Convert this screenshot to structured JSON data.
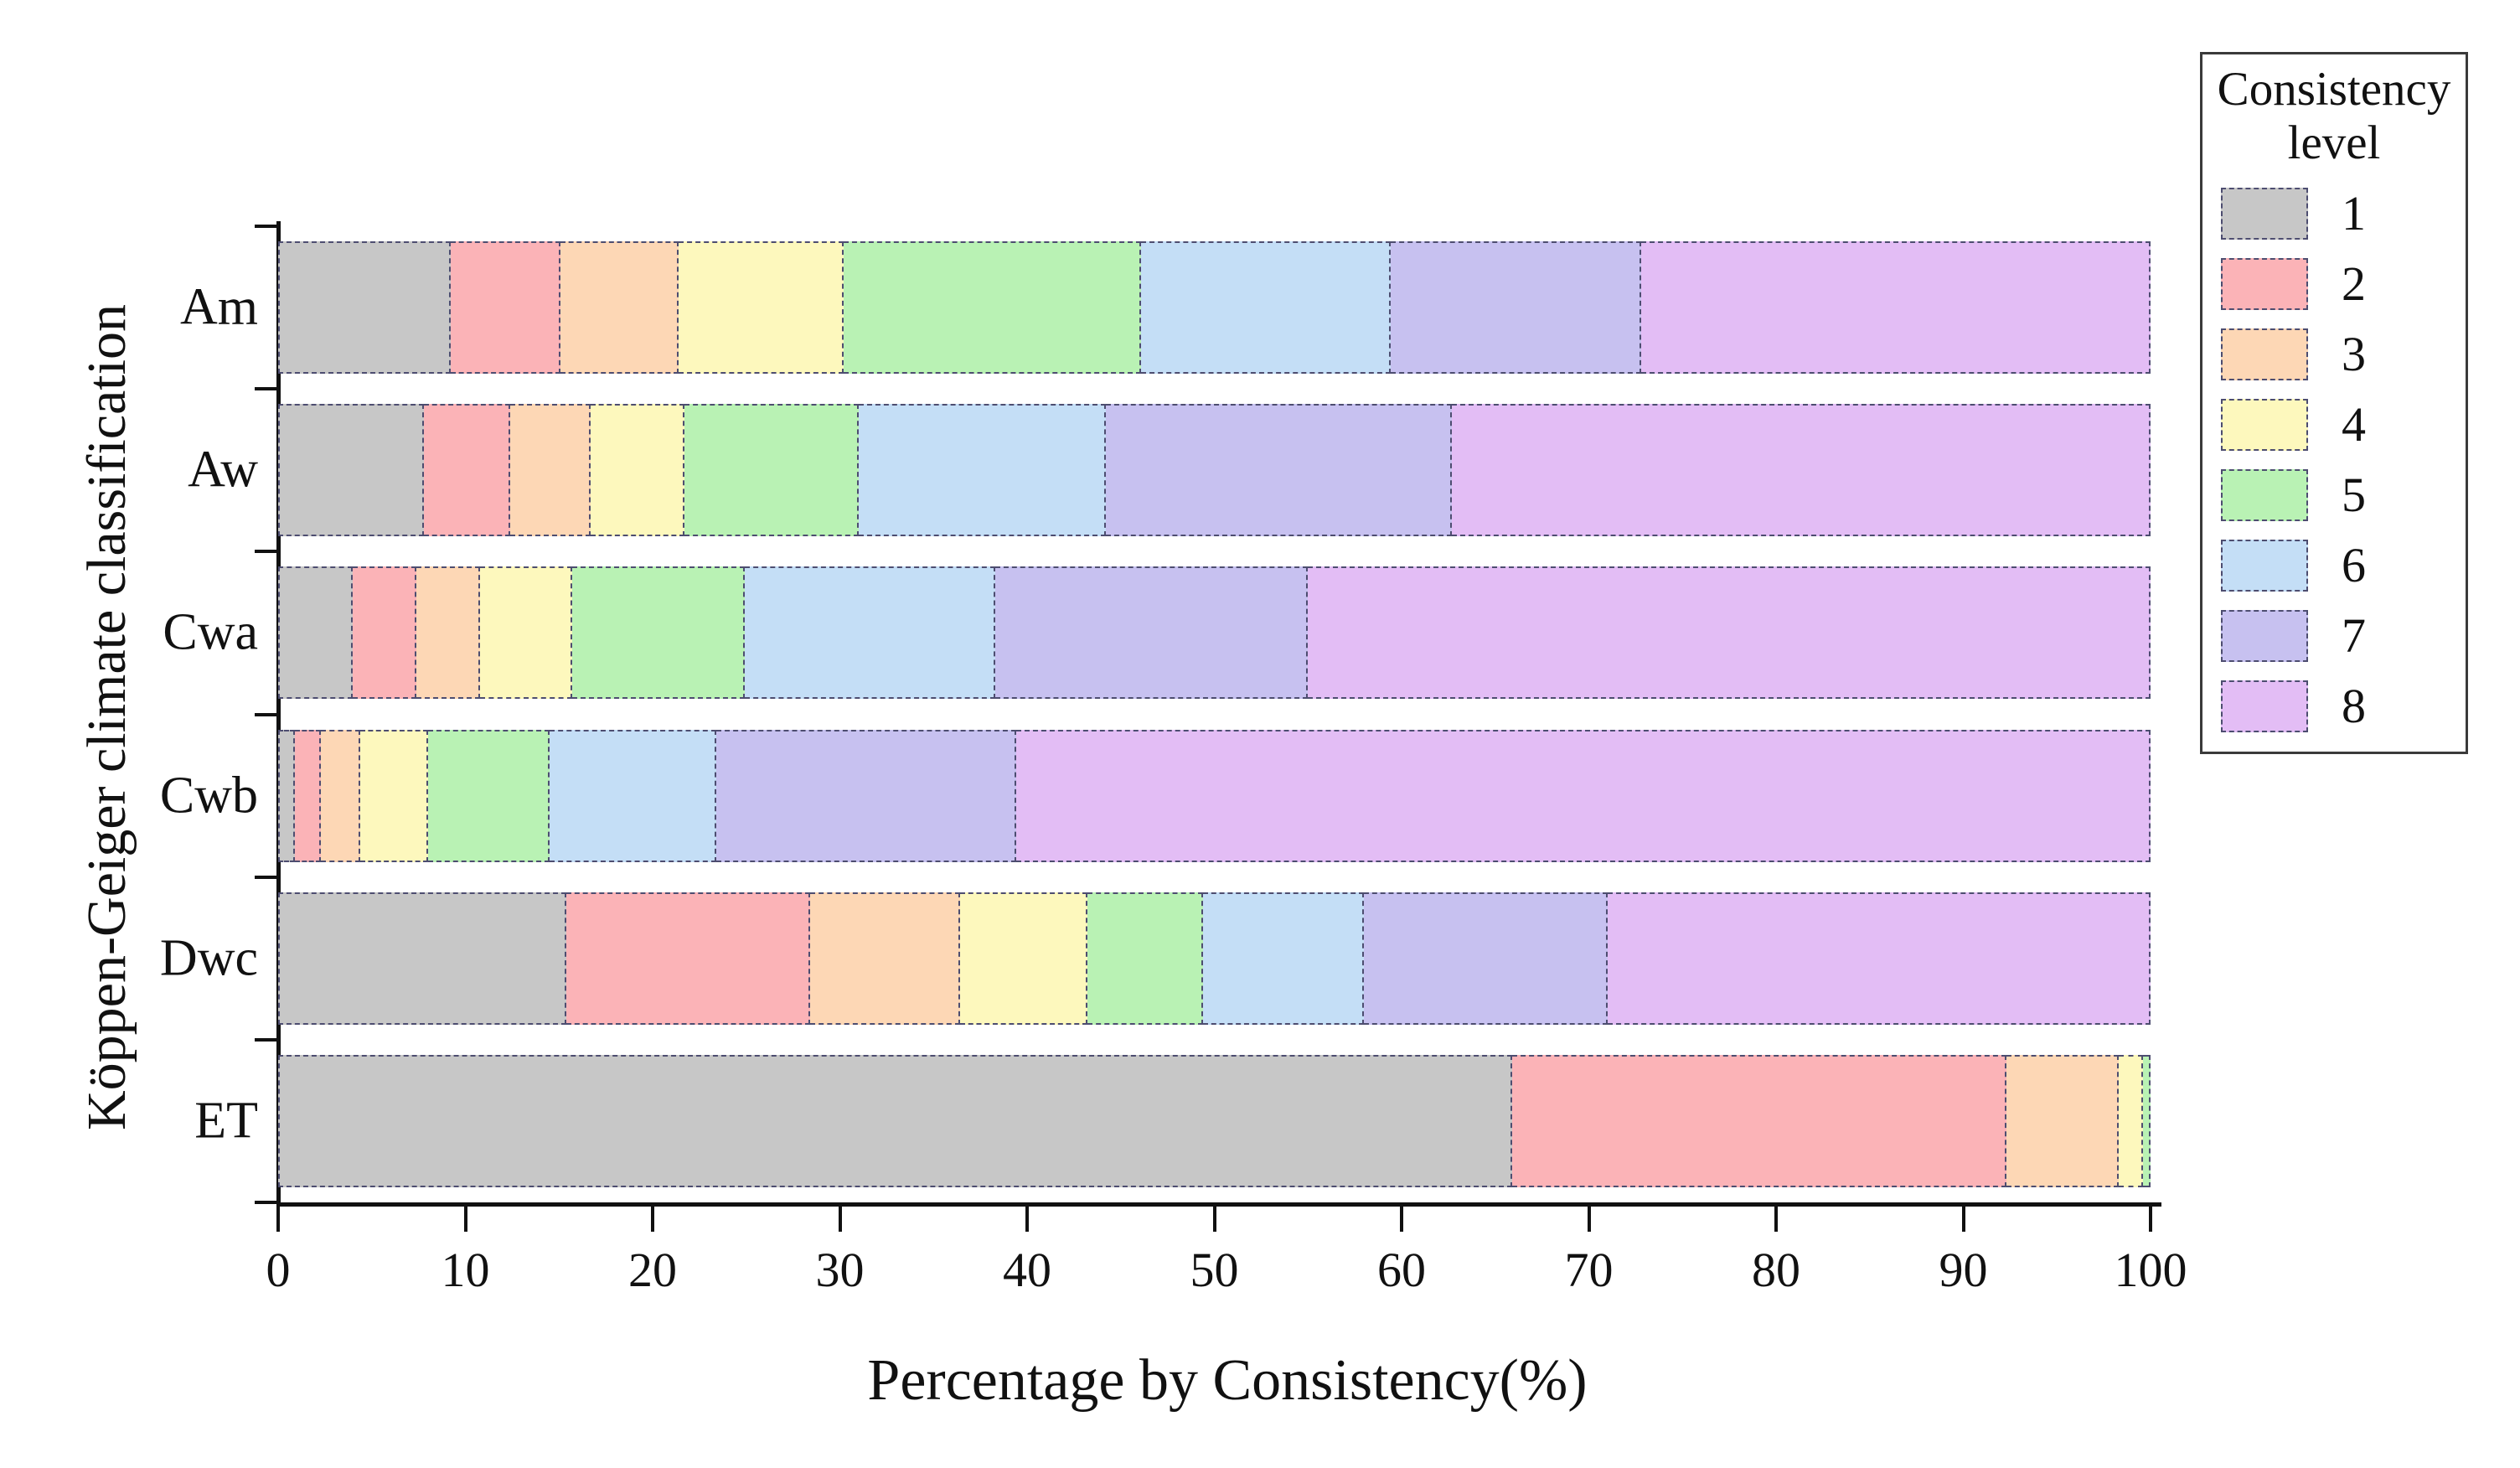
{
  "chart_data": {
    "type": "bar",
    "orientation": "horizontal",
    "stacked": true,
    "xlabel": "Percentage by Consistency(%)",
    "ylabel": "Köppen-Geiger climate classification",
    "xlim": [
      0,
      100
    ],
    "xticks": [
      0,
      10,
      20,
      30,
      40,
      50,
      60,
      70,
      80,
      90,
      100
    ],
    "grid": false,
    "categories": [
      "Am",
      "Aw",
      "Cwa",
      "Cwb",
      "Dwc",
      "ET"
    ],
    "legend": {
      "title_lines": [
        "Consistency",
        "level"
      ],
      "position": "top-right"
    },
    "series": [
      {
        "name": "1",
        "color": "#c7c7c7",
        "values": [
          9.2,
          7.8,
          4.0,
          0.9,
          15.4,
          65.9
        ]
      },
      {
        "name": "2",
        "color": "#fbb3b7",
        "values": [
          5.9,
          4.6,
          3.4,
          1.4,
          13.0,
          26.4
        ]
      },
      {
        "name": "3",
        "color": "#fdd7b5",
        "values": [
          6.3,
          4.3,
          3.4,
          2.1,
          8.0,
          6.0
        ]
      },
      {
        "name": "4",
        "color": "#fdf8bd",
        "values": [
          8.8,
          5.0,
          4.9,
          3.6,
          6.8,
          1.3
        ]
      },
      {
        "name": "5",
        "color": "#b9f2b4",
        "values": [
          15.9,
          9.3,
          9.2,
          6.5,
          6.2,
          0.4
        ]
      },
      {
        "name": "6",
        "color": "#c4def6",
        "values": [
          13.3,
          13.2,
          13.4,
          8.9,
          8.6,
          0
        ]
      },
      {
        "name": "7",
        "color": "#c7c1f0",
        "values": [
          13.4,
          18.5,
          16.7,
          16.0,
          13.0,
          0
        ]
      },
      {
        "name": "8",
        "color": "#e3bdf5",
        "values": [
          27.2,
          37.3,
          45.0,
          60.6,
          29.0,
          0
        ]
      }
    ],
    "colors": {
      "axis": "#111111",
      "segment_border": "#4d4d70",
      "background": "#ffffff"
    }
  }
}
